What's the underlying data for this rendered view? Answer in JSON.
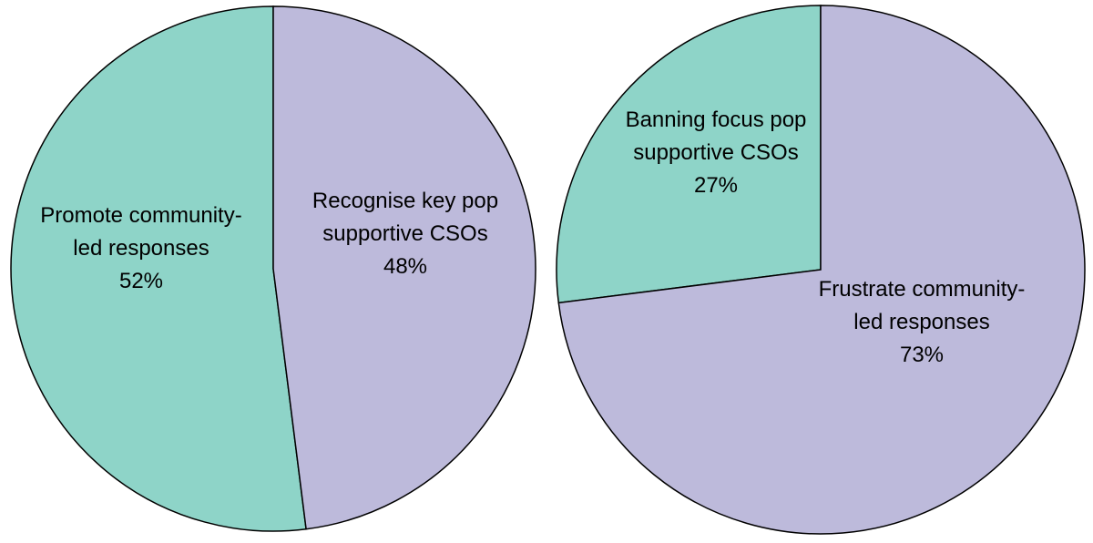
{
  "colors": {
    "teal": "#8ed4c8",
    "lavender": "#bdbadb",
    "outline": "#000000"
  },
  "chart_data": [
    {
      "type": "pie",
      "title": "",
      "slices": [
        {
          "label_lines": [
            "Promote community-",
            "led responses"
          ],
          "value": 52,
          "value_label": "52%",
          "color": "#8ed4c8"
        },
        {
          "label_lines": [
            "Recognise key pop",
            "supportive CSOs"
          ],
          "value": 48,
          "value_label": "48%",
          "color": "#bdbadb"
        }
      ]
    },
    {
      "type": "pie",
      "title": "",
      "slices": [
        {
          "label_lines": [
            "Banning focus pop",
            "supportive CSOs"
          ],
          "value": 27,
          "value_label": "27%",
          "color": "#8ed4c8"
        },
        {
          "label_lines": [
            "Frustrate community-",
            "led responses"
          ],
          "value": 73,
          "value_label": "73%",
          "color": "#bdbadb"
        }
      ]
    }
  ]
}
